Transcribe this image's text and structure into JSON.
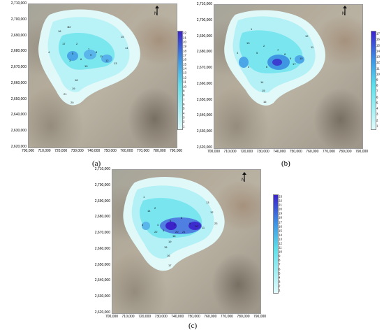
{
  "y_ticks": [
    "2,710,000",
    "2,700,000",
    "2,690,000",
    "2,680,000",
    "2,670,000",
    "2,660,000",
    "2,650,000",
    "2,640,000",
    "2,630,000",
    "2,620,000"
  ],
  "x_ticks": [
    "700,000",
    "710,000",
    "720,000",
    "730,000",
    "740,000",
    "750,000",
    "760,000",
    "770,000",
    "780,000",
    "790,000"
  ],
  "panels": [
    {
      "label": "(a)",
      "legend": [
        "22",
        "21",
        "20",
        "19",
        "18",
        "17",
        "16",
        "15",
        "14",
        "13",
        "12",
        "11",
        "10",
        "9",
        "8",
        "7",
        "6",
        "5",
        "4",
        "3",
        "2",
        "1"
      ],
      "well_labels": [
        "1",
        "2",
        "3",
        "4",
        "5",
        "6",
        "7",
        "8",
        "9",
        "10",
        "11",
        "12",
        "13",
        "14",
        "15",
        "16",
        "17",
        "18",
        "19",
        "20",
        "21",
        "22"
      ]
    },
    {
      "label": "(b)",
      "legend": [
        "17",
        "16",
        "15",
        "14",
        "13",
        "12",
        "11",
        "10",
        "9",
        "8",
        "7",
        "6",
        "5",
        "4",
        "3",
        "2",
        "1"
      ],
      "well_labels": [
        "1",
        "2",
        "3",
        "4",
        "5",
        "6",
        "7",
        "8",
        "9",
        "10",
        "11",
        "12",
        "13",
        "14",
        "15",
        "16",
        "17"
      ]
    },
    {
      "label": "(c)",
      "legend": [
        "23",
        "22",
        "21",
        "20",
        "19",
        "18",
        "17",
        "16",
        "15",
        "14",
        "13",
        "12",
        "11",
        "10",
        "9",
        "8",
        "7",
        "6",
        "5",
        "4",
        "3",
        "2",
        "1"
      ],
      "well_labels": [
        "1",
        "2",
        "3",
        "4",
        "5",
        "6",
        "7",
        "8",
        "9",
        "10",
        "11",
        "12",
        "13",
        "14",
        "15",
        "16",
        "17",
        "18",
        "19",
        "20",
        "21",
        "22",
        "23"
      ]
    }
  ],
  "colors": {
    "contour_light": "#e2fbfb",
    "contour_cyan": "#5fe0ea",
    "contour_mid": "#3f97e4",
    "contour_dark": "#3b22c9"
  }
}
